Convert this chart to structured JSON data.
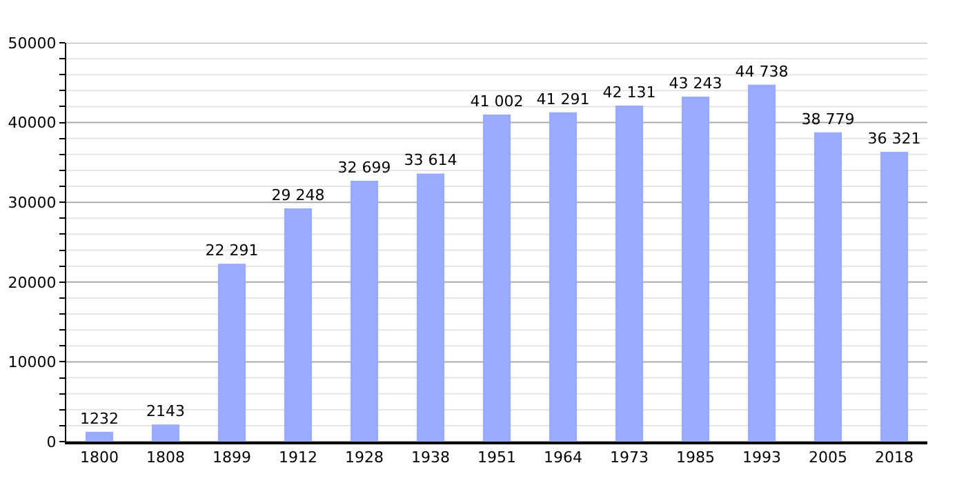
{
  "chart_data": {
    "type": "bar",
    "categories": [
      "1800",
      "1808",
      "1899",
      "1912",
      "1928",
      "1938",
      "1951",
      "1964",
      "1973",
      "1985",
      "1993",
      "2005",
      "2018"
    ],
    "values": [
      1232,
      2143,
      22291,
      29248,
      32699,
      33614,
      41002,
      41291,
      42131,
      43243,
      44738,
      38779,
      36321
    ],
    "value_labels": [
      "1232",
      "2143",
      "22 291",
      "29 248",
      "32 699",
      "33 614",
      "41 002",
      "41 291",
      "42 131",
      "43 243",
      "44 738",
      "38 779",
      "36 321"
    ],
    "color": "#99aaff",
    "ylim": [
      0,
      50000
    ],
    "yticks": [
      0,
      {
        "value": 2000,
        "label": null
      },
      {
        "value": 4000,
        "label": null
      },
      {
        "value": 6000,
        "label": null
      },
      {
        "value": 8000,
        "label": null
      },
      10000,
      {
        "value": 12000,
        "label": null
      },
      {
        "value": 14000,
        "label": null
      },
      {
        "value": 16000,
        "label": null
      },
      {
        "value": 18000,
        "label": null
      },
      20000,
      {
        "value": 22000,
        "label": null
      },
      {
        "value": 24000,
        "label": null
      },
      {
        "value": 26000,
        "label": null
      },
      {
        "value": 28000,
        "label": null
      },
      30000,
      {
        "value": 32000,
        "label": null
      },
      {
        "value": 34000,
        "label": null
      },
      {
        "value": 36000,
        "label": null
      },
      {
        "value": 38000,
        "label": null
      },
      40000,
      {
        "value": 42000,
        "label": null
      },
      {
        "value": 44000,
        "label": null
      },
      {
        "value": 46000,
        "label": null
      },
      {
        "value": 48000,
        "label": null
      },
      50000
    ],
    "grid": "y"
  }
}
